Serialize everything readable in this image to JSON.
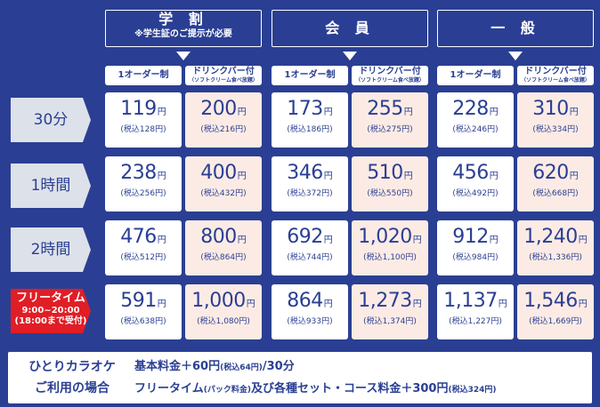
{
  "headers": {
    "student": {
      "title": "学 割",
      "note": "※学生証のご提示が必要"
    },
    "member": {
      "title": "会 員"
    },
    "general": {
      "title": "一 般"
    }
  },
  "subheaders": {
    "one_order": "1オーダー制",
    "drink_bar": "ドリンクバー付",
    "drink_bar_note": "（ソフトクリーム食べ放題）"
  },
  "yen_unit": "円",
  "rows": [
    {
      "label": "30分",
      "prices": [
        {
          "price": "119",
          "tax": "(税込128円)"
        },
        {
          "price": "200",
          "tax": "(税込216円)"
        },
        {
          "price": "173",
          "tax": "(税込186円)"
        },
        {
          "price": "255",
          "tax": "(税込275円)"
        },
        {
          "price": "228",
          "tax": "(税込246円)"
        },
        {
          "price": "310",
          "tax": "(税込334円)"
        }
      ]
    },
    {
      "label": "1時間",
      "prices": [
        {
          "price": "238",
          "tax": "(税込256円)"
        },
        {
          "price": "400",
          "tax": "(税込432円)"
        },
        {
          "price": "346",
          "tax": "(税込372円)"
        },
        {
          "price": "510",
          "tax": "(税込550円)"
        },
        {
          "price": "456",
          "tax": "(税込492円)"
        },
        {
          "price": "620",
          "tax": "(税込668円)"
        }
      ]
    },
    {
      "label": "2時間",
      "prices": [
        {
          "price": "476",
          "tax": "(税込512円)"
        },
        {
          "price": "800",
          "tax": "(税込864円)"
        },
        {
          "price": "692",
          "tax": "(税込744円)"
        },
        {
          "price": "1,020",
          "tax": "(税込1,100円)"
        },
        {
          "price": "912",
          "tax": "(税込984円)"
        },
        {
          "price": "1,240",
          "tax": "(税込1,336円)"
        }
      ]
    },
    {
      "label": "フリータイム",
      "label_sub1": "9:00~20:00",
      "label_sub2": "(18:00まで受付)",
      "prices": [
        {
          "price": "591",
          "tax": "(税込638円)"
        },
        {
          "price": "1,000",
          "tax": "(税込1,080円)"
        },
        {
          "price": "864",
          "tax": "(税込933円)"
        },
        {
          "price": "1,273",
          "tax": "(税込1,374円)"
        },
        {
          "price": "1,137",
          "tax": "(税込1,227円)"
        },
        {
          "price": "1,546",
          "tax": "(税込1,669円)"
        }
      ]
    }
  ],
  "bottom": {
    "left_line1": "ひとりカラオケ",
    "left_line2": "ご利用の場合",
    "r1_main": "基本料金＋60円",
    "r1_small": "(税込64円)",
    "r1_tail": "/30分",
    "r2_a": "フリータイム",
    "r2_b": "(パック料金)",
    "r2_c": "及び各種セット・コース料金＋300円",
    "r2_d": "(税込324円)"
  },
  "colors": {
    "navy": "#2a3f93",
    "pink_cell": "#fcebe5",
    "red_label": "#e11d25",
    "grey_label": "#dde1ea"
  }
}
